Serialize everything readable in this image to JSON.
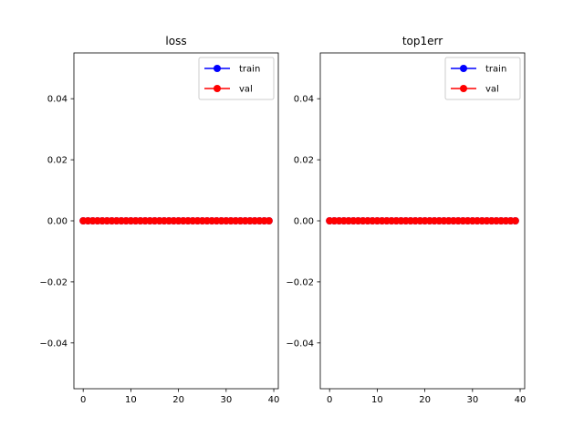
{
  "chart_data": [
    {
      "type": "line",
      "title": "loss",
      "xlabel": "",
      "ylabel": "",
      "xlim": [
        -1.95,
        40.95
      ],
      "ylim": [
        -0.055,
        0.055
      ],
      "xticks": [
        0,
        10,
        20,
        30,
        40
      ],
      "xtick_labels": [
        "0",
        "10",
        "20",
        "30",
        "40"
      ],
      "yticks": [
        -0.04,
        -0.02,
        0.0,
        0.02,
        0.04
      ],
      "ytick_labels": [
        "−0.04",
        "−0.02",
        "0.00",
        "0.02",
        "0.04"
      ],
      "grid": false,
      "legend_position": "top-right",
      "x": [
        0,
        1,
        2,
        3,
        4,
        5,
        6,
        7,
        8,
        9,
        10,
        11,
        12,
        13,
        14,
        15,
        16,
        17,
        18,
        19,
        20,
        21,
        22,
        23,
        24,
        25,
        26,
        27,
        28,
        29,
        30,
        31,
        32,
        33,
        34,
        35,
        36,
        37,
        38,
        39
      ],
      "series": [
        {
          "name": "train",
          "color": "#0000ff",
          "marker": "circle",
          "values": [
            0,
            0,
            0,
            0,
            0,
            0,
            0,
            0,
            0,
            0,
            0,
            0,
            0,
            0,
            0,
            0,
            0,
            0,
            0,
            0,
            0,
            0,
            0,
            0,
            0,
            0,
            0,
            0,
            0,
            0,
            0,
            0,
            0,
            0,
            0,
            0,
            0,
            0,
            0,
            0
          ]
        },
        {
          "name": "val",
          "color": "#ff0000",
          "marker": "circle",
          "values": [
            0,
            0,
            0,
            0,
            0,
            0,
            0,
            0,
            0,
            0,
            0,
            0,
            0,
            0,
            0,
            0,
            0,
            0,
            0,
            0,
            0,
            0,
            0,
            0,
            0,
            0,
            0,
            0,
            0,
            0,
            0,
            0,
            0,
            0,
            0,
            0,
            0,
            0,
            0,
            0
          ]
        }
      ]
    },
    {
      "type": "line",
      "title": "top1err",
      "xlabel": "",
      "ylabel": "",
      "xlim": [
        -1.95,
        40.95
      ],
      "ylim": [
        -0.055,
        0.055
      ],
      "xticks": [
        0,
        10,
        20,
        30,
        40
      ],
      "xtick_labels": [
        "0",
        "10",
        "20",
        "30",
        "40"
      ],
      "yticks": [
        -0.04,
        -0.02,
        0.0,
        0.02,
        0.04
      ],
      "ytick_labels": [
        "−0.04",
        "−0.02",
        "0.00",
        "0.02",
        "0.04"
      ],
      "grid": false,
      "legend_position": "top-right",
      "x": [
        0,
        1,
        2,
        3,
        4,
        5,
        6,
        7,
        8,
        9,
        10,
        11,
        12,
        13,
        14,
        15,
        16,
        17,
        18,
        19,
        20,
        21,
        22,
        23,
        24,
        25,
        26,
        27,
        28,
        29,
        30,
        31,
        32,
        33,
        34,
        35,
        36,
        37,
        38,
        39
      ],
      "series": [
        {
          "name": "train",
          "color": "#0000ff",
          "marker": "circle",
          "values": [
            0,
            0,
            0,
            0,
            0,
            0,
            0,
            0,
            0,
            0,
            0,
            0,
            0,
            0,
            0,
            0,
            0,
            0,
            0,
            0,
            0,
            0,
            0,
            0,
            0,
            0,
            0,
            0,
            0,
            0,
            0,
            0,
            0,
            0,
            0,
            0,
            0,
            0,
            0,
            0
          ]
        },
        {
          "name": "val",
          "color": "#ff0000",
          "marker": "circle",
          "values": [
            0,
            0,
            0,
            0,
            0,
            0,
            0,
            0,
            0,
            0,
            0,
            0,
            0,
            0,
            0,
            0,
            0,
            0,
            0,
            0,
            0,
            0,
            0,
            0,
            0,
            0,
            0,
            0,
            0,
            0,
            0,
            0,
            0,
            0,
            0,
            0,
            0,
            0,
            0,
            0
          ]
        }
      ]
    }
  ]
}
